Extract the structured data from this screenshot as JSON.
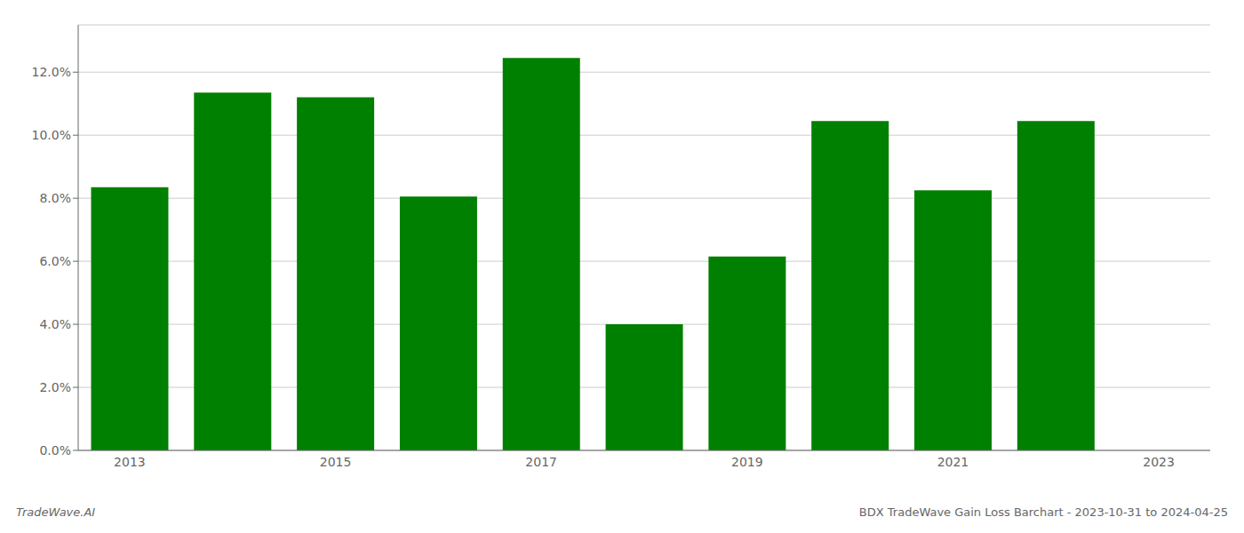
{
  "chart_data": {
    "type": "bar",
    "categories": [
      "2013",
      null,
      "2015",
      null,
      "2017",
      null,
      "2019",
      null,
      "2021",
      null,
      "2023"
    ],
    "values": [
      0.0835,
      0.1135,
      0.112,
      0.0805,
      0.1245,
      0.04,
      0.0615,
      0.1045,
      0.0825,
      0.1045,
      0.0
    ],
    "color": "#008000",
    "ylim": [
      0,
      0.135
    ],
    "yticks": [
      {
        "value": 0.0,
        "label": "0.0%"
      },
      {
        "value": 0.02,
        "label": "2.0%"
      },
      {
        "value": 0.04,
        "label": "4.0%"
      },
      {
        "value": 0.06,
        "label": "6.0%"
      },
      {
        "value": 0.08,
        "label": "8.0%"
      },
      {
        "value": 0.1,
        "label": "10.0%"
      },
      {
        "value": 0.12,
        "label": "12.0%"
      }
    ],
    "grid": true,
    "annotations": [
      "TradeWave.AI",
      "BDX TradeWave Gain Loss Barchart - 2023-10-31 to 2024-04-25"
    ]
  }
}
